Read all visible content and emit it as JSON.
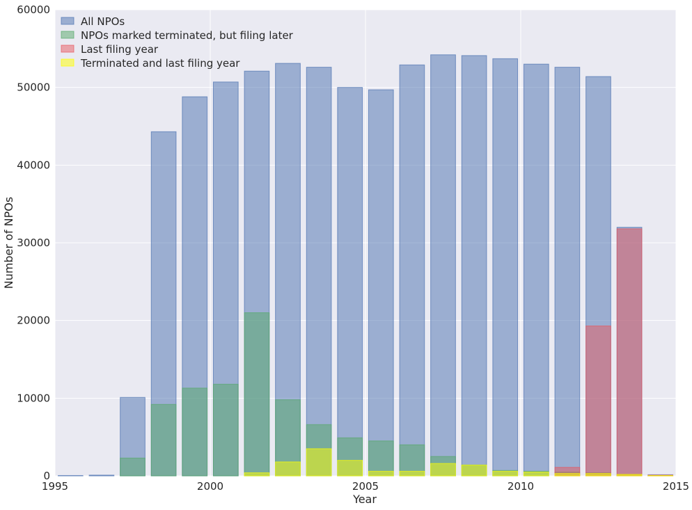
{
  "chart_data": {
    "type": "bar",
    "title": "",
    "xlabel": "Year",
    "ylabel": "Number of NPOs",
    "xlim": [
      1995,
      2015
    ],
    "ylim": [
      0,
      60000
    ],
    "xticks": [
      1995,
      2000,
      2005,
      2010,
      2015
    ],
    "yticks": [
      0,
      10000,
      20000,
      30000,
      40000,
      50000,
      60000
    ],
    "grid": true,
    "legend_position": "top-left",
    "bar_width_years": 0.8,
    "categories": [
      1995,
      1996,
      1997,
      1998,
      1999,
      2000,
      2001,
      2002,
      2003,
      2004,
      2005,
      2006,
      2007,
      2008,
      2009,
      2010,
      2011,
      2012,
      2013,
      2014
    ],
    "series": [
      {
        "name": "All NPOs",
        "color": "#4c72b0",
        "values": [
          50,
          100,
          10100,
          44300,
          48800,
          50700,
          52100,
          53100,
          52600,
          50000,
          49700,
          52900,
          54200,
          54100,
          53700,
          53000,
          52600,
          51400,
          32000,
          150
        ]
      },
      {
        "name": "NPOs marked terminated, but filing later",
        "color": "#55a868",
        "values": [
          0,
          0,
          2300,
          9200,
          11300,
          11800,
          21000,
          9800,
          6600,
          4900,
          4500,
          4000,
          2500,
          1400,
          700,
          600,
          500,
          400,
          200,
          50
        ]
      },
      {
        "name": "Last filing year",
        "color": "#e8595f",
        "values": [
          0,
          0,
          0,
          0,
          0,
          0,
          0,
          0,
          0,
          0,
          0,
          0,
          0,
          0,
          0,
          0,
          1100,
          19300,
          31800,
          100
        ]
      },
      {
        "name": "Terminated and last filing year",
        "color": "#ffff00",
        "values": [
          0,
          0,
          0,
          0,
          0,
          0,
          400,
          1800,
          3500,
          2000,
          600,
          600,
          1600,
          1400,
          600,
          500,
          300,
          300,
          200,
          50
        ]
      }
    ]
  }
}
